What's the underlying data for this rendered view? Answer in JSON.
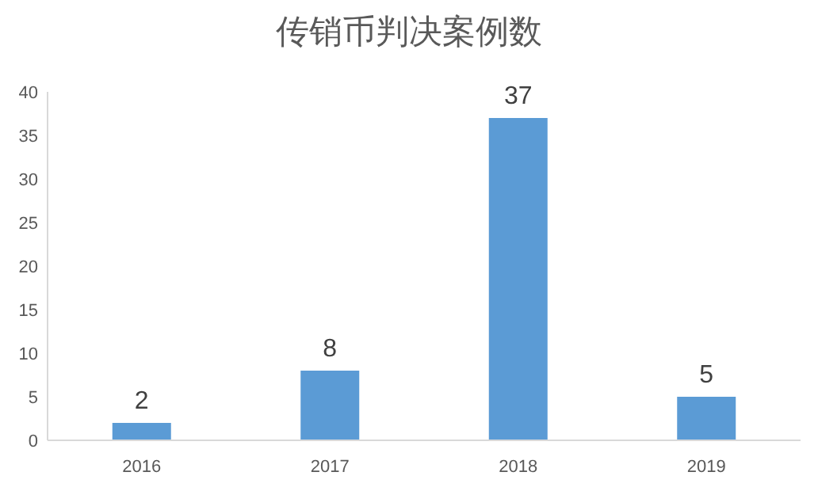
{
  "chart_data": {
    "type": "bar",
    "title": "传销币判决案例数",
    "categories": [
      "2016",
      "2017",
      "2018",
      "2019"
    ],
    "values": [
      2,
      8,
      37,
      5
    ],
    "color": "#5b9bd5",
    "ylim": [
      0,
      40
    ],
    "yticks": [
      0,
      5,
      10,
      15,
      20,
      25,
      30,
      35,
      40
    ],
    "data_labels": true,
    "grid": false,
    "legend": false
  }
}
